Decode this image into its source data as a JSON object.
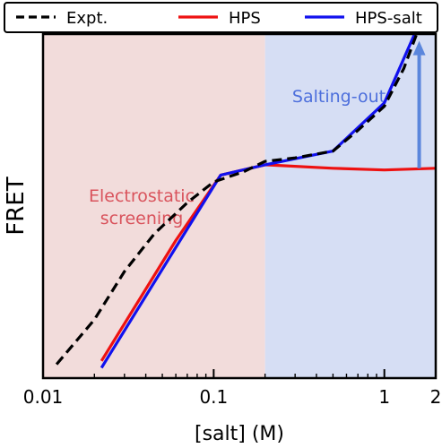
{
  "chart_data": {
    "type": "line",
    "xlabel": "[salt] (M)",
    "ylabel": "FRET",
    "xscale": "log",
    "xlim": [
      0.01,
      2
    ],
    "ylim": [
      0,
      1
    ],
    "xticks": [
      {
        "value": 0.01,
        "label": "0.01"
      },
      {
        "value": 0.1,
        "label": "0.1"
      },
      {
        "value": 1,
        "label": "1"
      },
      {
        "value": 2,
        "label": "2"
      }
    ],
    "y_tick_labels_shown": false,
    "legend": {
      "placement": "top",
      "entries": [
        {
          "label": "Expt.",
          "color": "#000000",
          "style": "dashed"
        },
        {
          "label": "HPS",
          "color": "#ee1111",
          "style": "solid"
        },
        {
          "label": "HPS-salt",
          "color": "#1111ee",
          "style": "solid"
        }
      ]
    },
    "regions": [
      {
        "label": "Electrostatic\nscreening",
        "x_range": [
          0.01,
          0.2
        ],
        "color": "#f2dcdb",
        "text_color": "#d9535c"
      },
      {
        "label": "Salting-out",
        "x_range": [
          0.2,
          2
        ],
        "color": "#d6def4",
        "text_color": "#4d6fdc"
      }
    ],
    "series": [
      {
        "name": "Expt.",
        "color": "#000000",
        "style": "dashed",
        "points": [
          [
            0.012,
            0.04
          ],
          [
            0.02,
            0.17
          ],
          [
            0.03,
            0.31
          ],
          [
            0.045,
            0.42
          ],
          [
            0.07,
            0.51
          ],
          [
            0.1,
            0.57
          ],
          [
            0.15,
            0.6
          ],
          [
            0.2,
            0.63
          ],
          [
            0.3,
            0.64
          ],
          [
            0.5,
            0.66
          ],
          [
            0.7,
            0.72
          ],
          [
            1.0,
            0.79
          ],
          [
            1.3,
            0.9
          ],
          [
            1.6,
            1.02
          ],
          [
            2.0,
            1.27
          ]
        ]
      },
      {
        "name": "HPS",
        "color": "#ee1111",
        "style": "solid",
        "points": [
          [
            0.022,
            0.05
          ],
          [
            0.06,
            0.4
          ],
          [
            0.11,
            0.59
          ],
          [
            0.2,
            0.62
          ],
          [
            0.5,
            0.61
          ],
          [
            1.0,
            0.605
          ],
          [
            2.0,
            0.61
          ]
        ]
      },
      {
        "name": "HPS-salt",
        "color": "#1111ee",
        "style": "solid",
        "points": [
          [
            0.022,
            0.03
          ],
          [
            0.06,
            0.38
          ],
          [
            0.11,
            0.59
          ],
          [
            0.2,
            0.62
          ],
          [
            0.5,
            0.66
          ],
          [
            1.0,
            0.8
          ],
          [
            2.0,
            1.14
          ]
        ]
      }
    ],
    "annotations": [
      {
        "type": "arrow",
        "x": 1.6,
        "from_y": 0.61,
        "to_y": 0.98,
        "color": "#5b86dc"
      }
    ]
  }
}
